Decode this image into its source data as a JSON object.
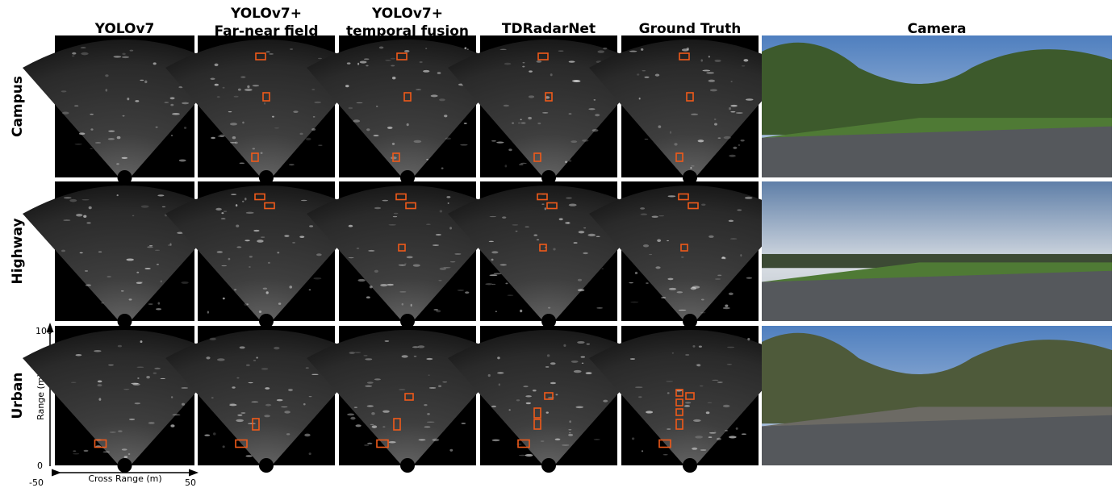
{
  "column_headers": [
    {
      "lines": [
        "YOLOv7"
      ]
    },
    {
      "lines": [
        "YOLOv7+",
        "Far-near field"
      ]
    },
    {
      "lines": [
        "YOLOv7+",
        "temporal fusion"
      ]
    },
    {
      "lines": [
        "TDRadarNet"
      ]
    },
    {
      "lines": [
        "Ground Truth"
      ]
    },
    {
      "lines": [
        "Camera"
      ]
    }
  ],
  "row_labels": [
    "Campus",
    "Highway",
    "Urban"
  ],
  "axes": {
    "y_max": "100",
    "y_min": "0",
    "y_label": "Range (m)",
    "x_min": "-50",
    "x_label": "Cross Range (m)",
    "x_max": "50"
  }
}
